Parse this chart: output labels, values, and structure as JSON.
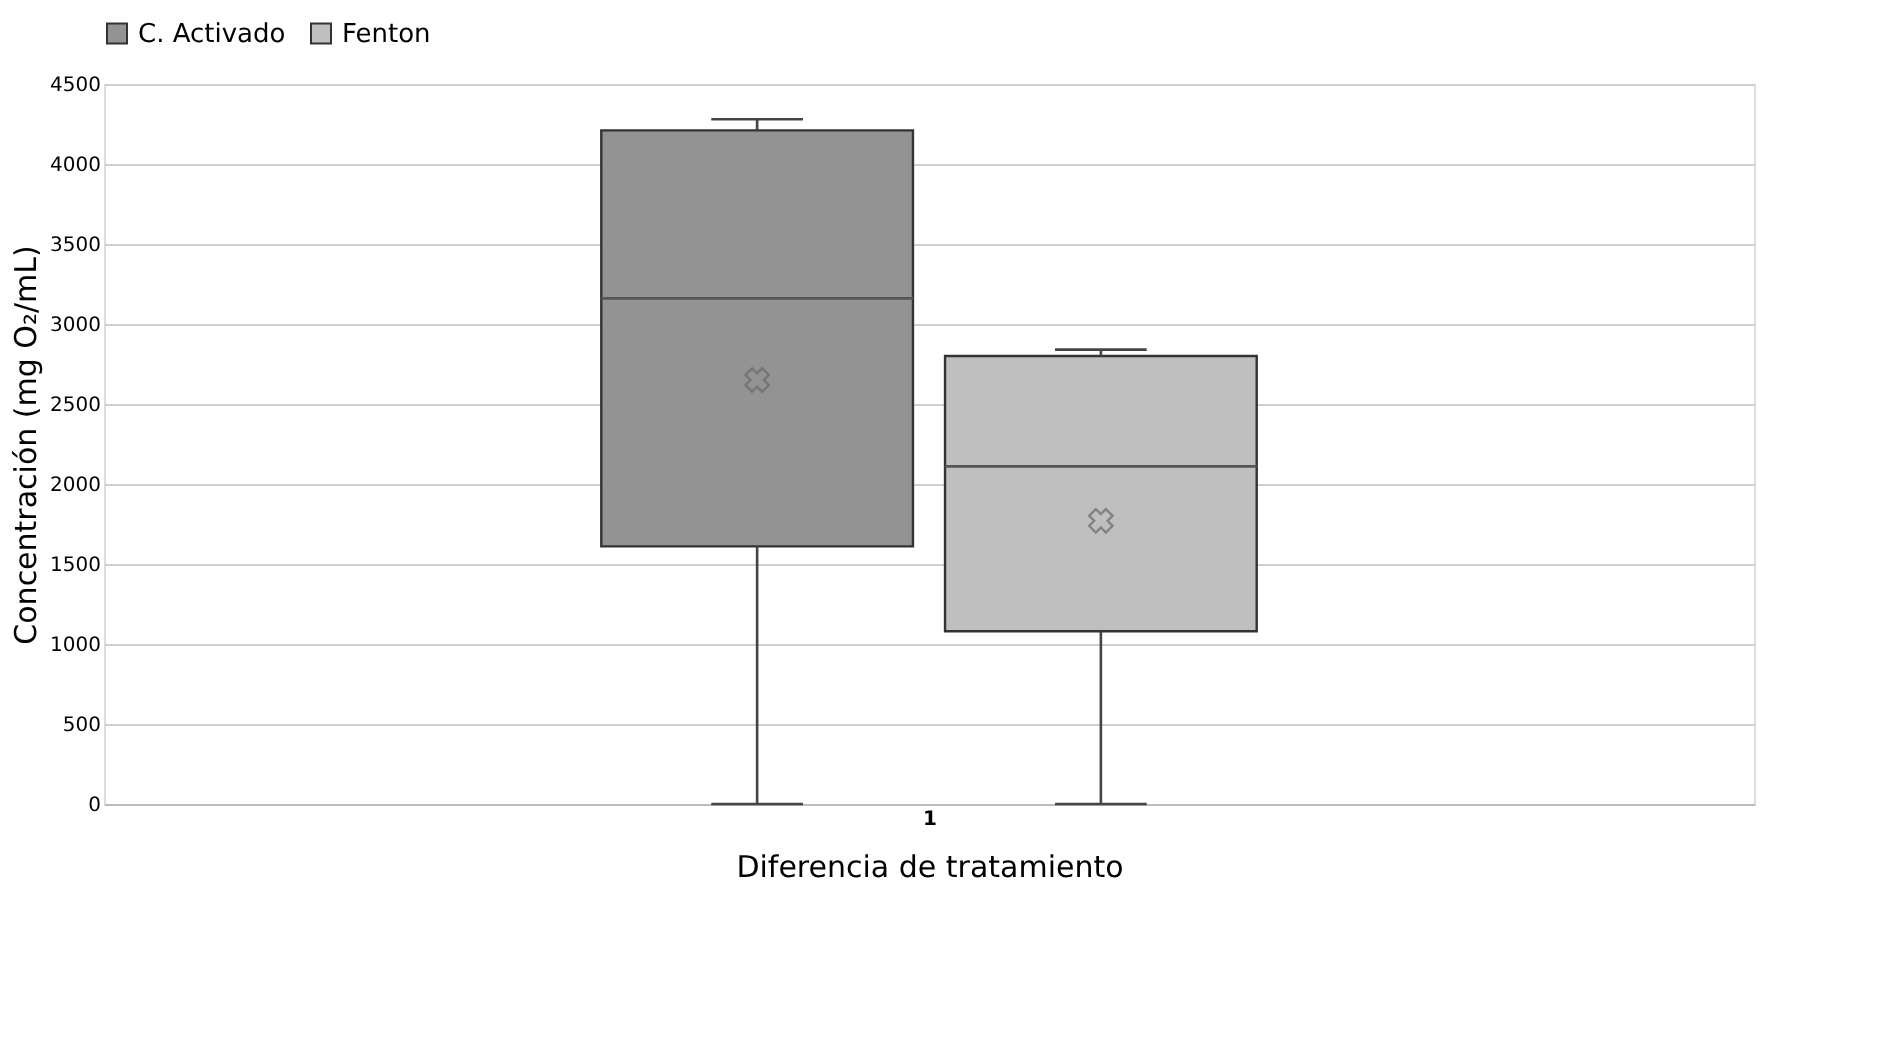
{
  "chart_data": {
    "type": "box",
    "xlabel": "Diferencia de tratamiento",
    "ylabel": "Concentración  (mg O₂/mL)",
    "categories": [
      "1"
    ],
    "series": [
      {
        "name": "C. Activado",
        "color": "#939393",
        "boxes": [
          {
            "low": 0,
            "q1": 1610,
            "median": 3160,
            "q3": 4210,
            "high": 4280,
            "mean": 2650
          }
        ]
      },
      {
        "name": "Fenton",
        "color": "#bfbfbf",
        "boxes": [
          {
            "low": 0,
            "q1": 1080,
            "median": 2110,
            "q3": 2800,
            "high": 2840,
            "mean": 1770
          }
        ]
      }
    ],
    "ylim": [
      0,
      4500
    ],
    "yticks": [
      0,
      500,
      1000,
      1500,
      2000,
      2500,
      3000,
      3500,
      4000,
      4500
    ],
    "grid": "y",
    "legend": "top"
  }
}
